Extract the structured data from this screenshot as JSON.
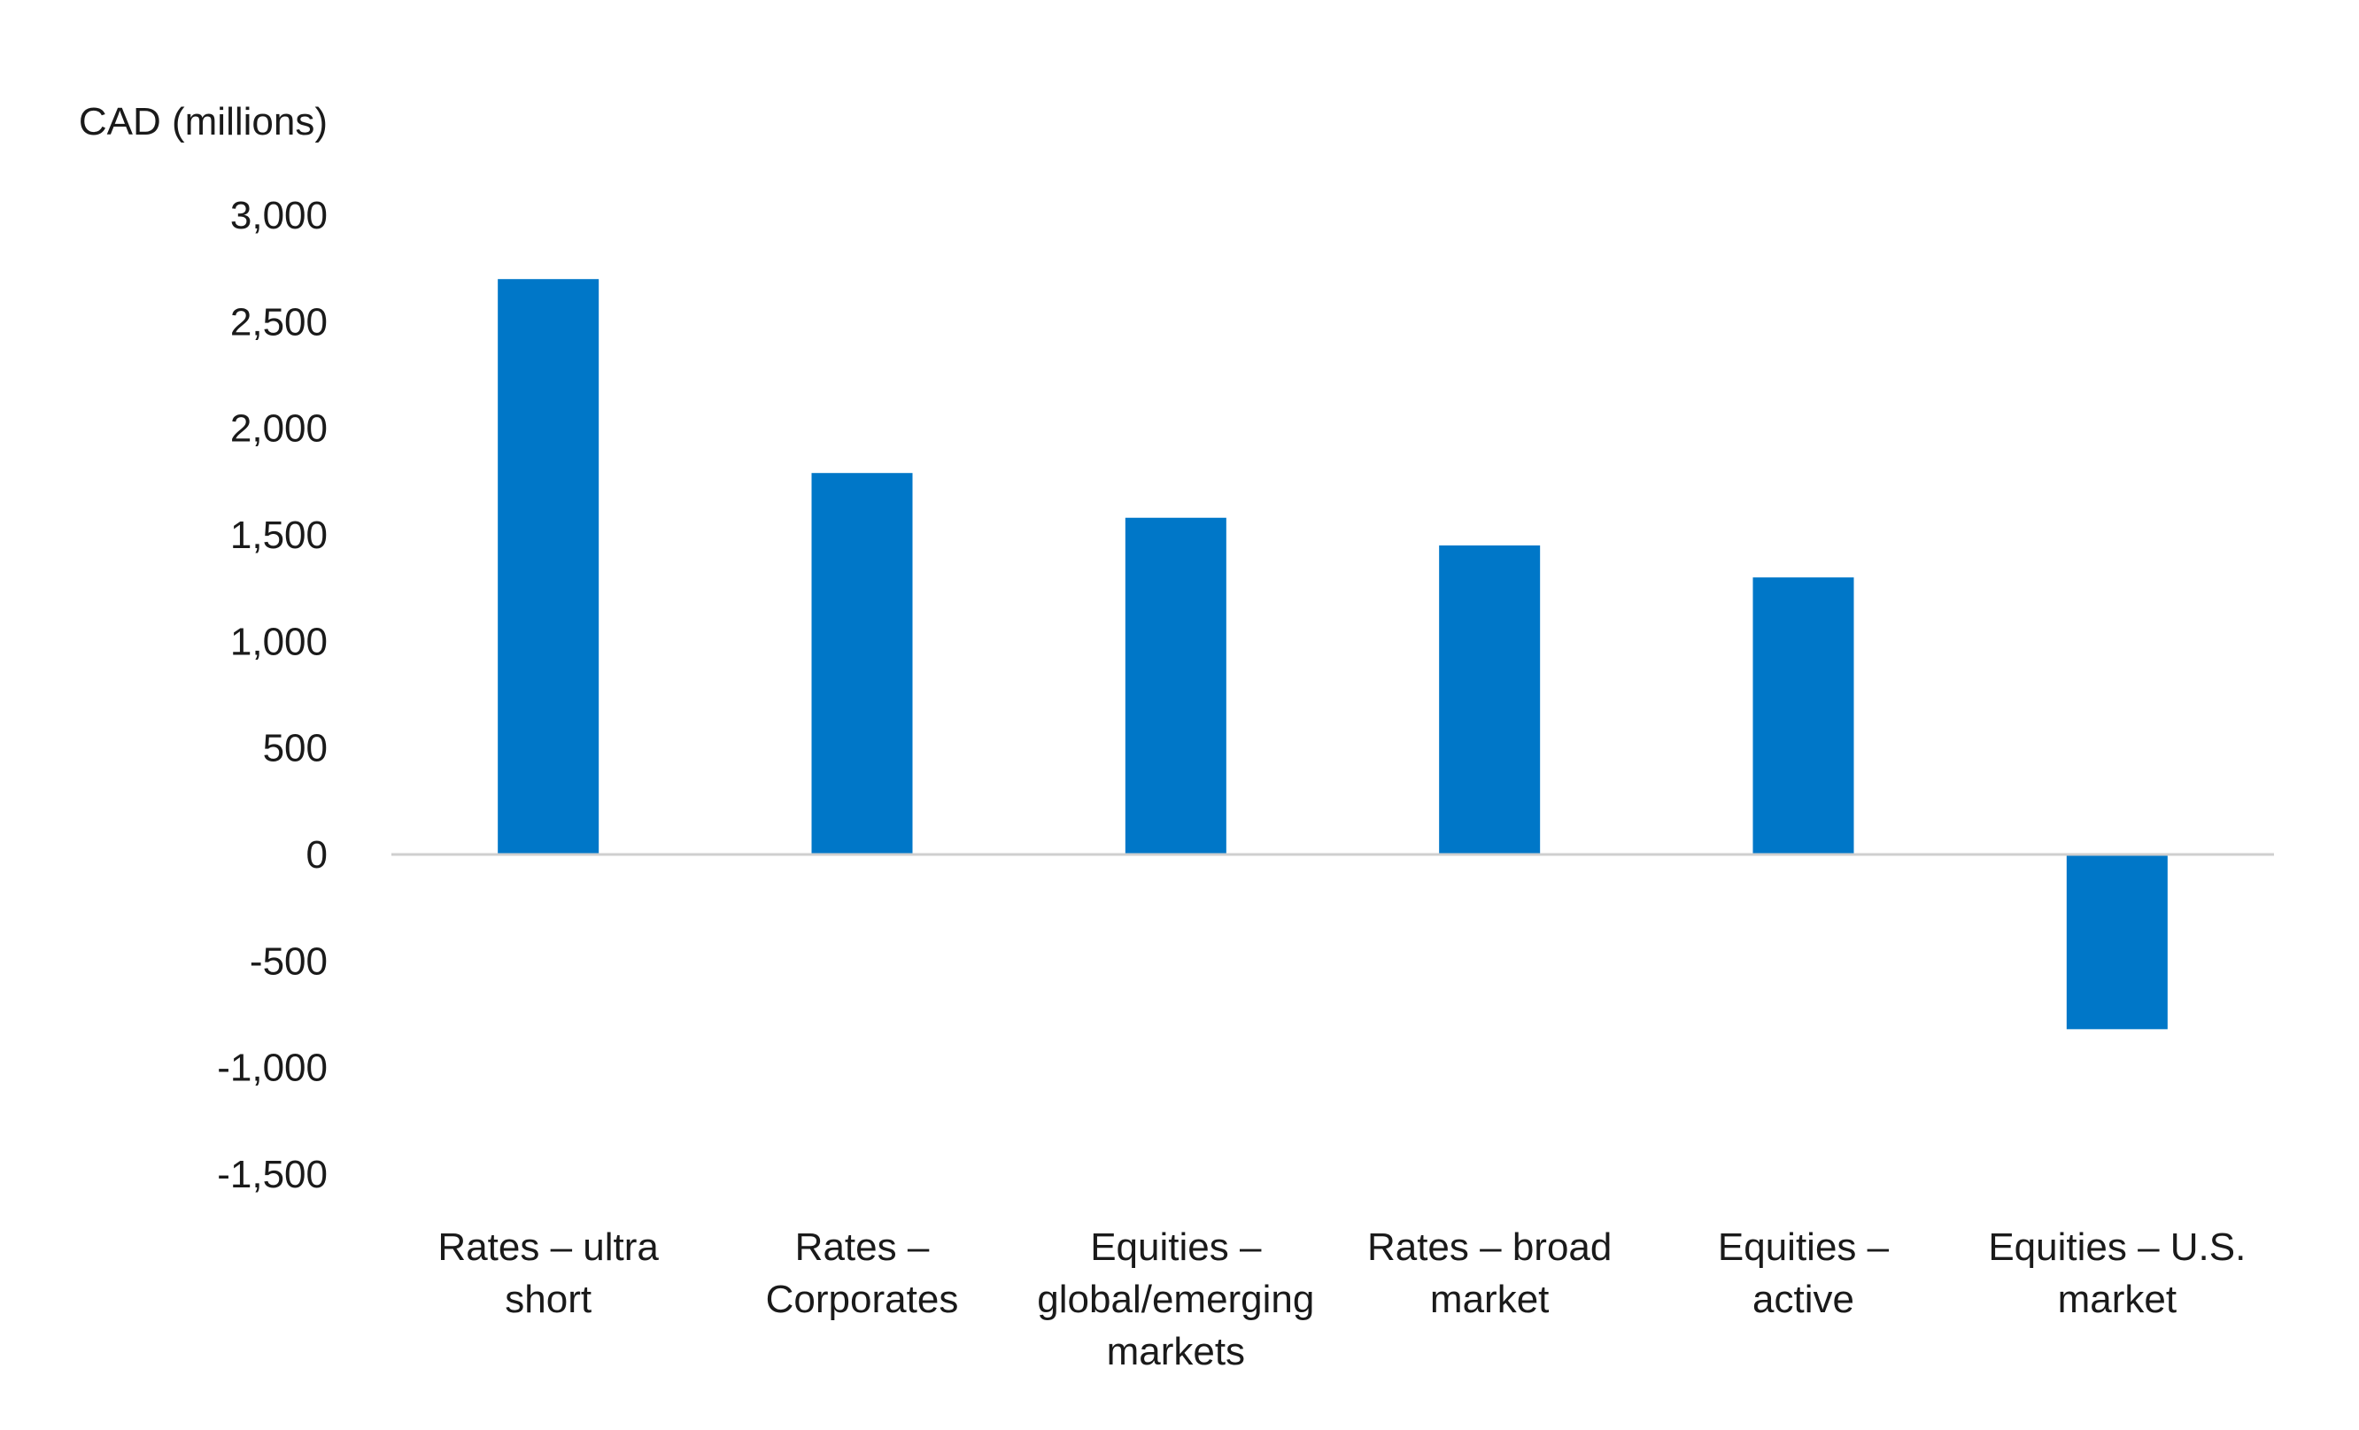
{
  "chart_data": {
    "type": "bar",
    "ylabel": "CAD (millions)",
    "categories": [
      [
        "Rates – ultra",
        "short"
      ],
      [
        "Rates –",
        "Corporates"
      ],
      [
        "Equities –",
        "global/emerging",
        "markets"
      ],
      [
        "Rates – broad",
        "market"
      ],
      [
        "Equities –",
        "active"
      ],
      [
        "Equities – U.S.",
        "market"
      ]
    ],
    "values": [
      2700,
      1790,
      1580,
      1450,
      1300,
      -820
    ],
    "ylim": [
      -1500,
      3000
    ],
    "yticks": [
      3000,
      2500,
      2000,
      1500,
      1000,
      500,
      0,
      -500,
      -1000,
      -1500
    ],
    "ytick_labels": [
      "3,000",
      "2,500",
      "2,000",
      "1,500",
      "1,000",
      "500",
      "0",
      "-500",
      "-1,000",
      "-1,500"
    ],
    "grid": false,
    "legend": "none",
    "bar_color": "#0077c8",
    "axis_color": "#cfcfcf"
  }
}
